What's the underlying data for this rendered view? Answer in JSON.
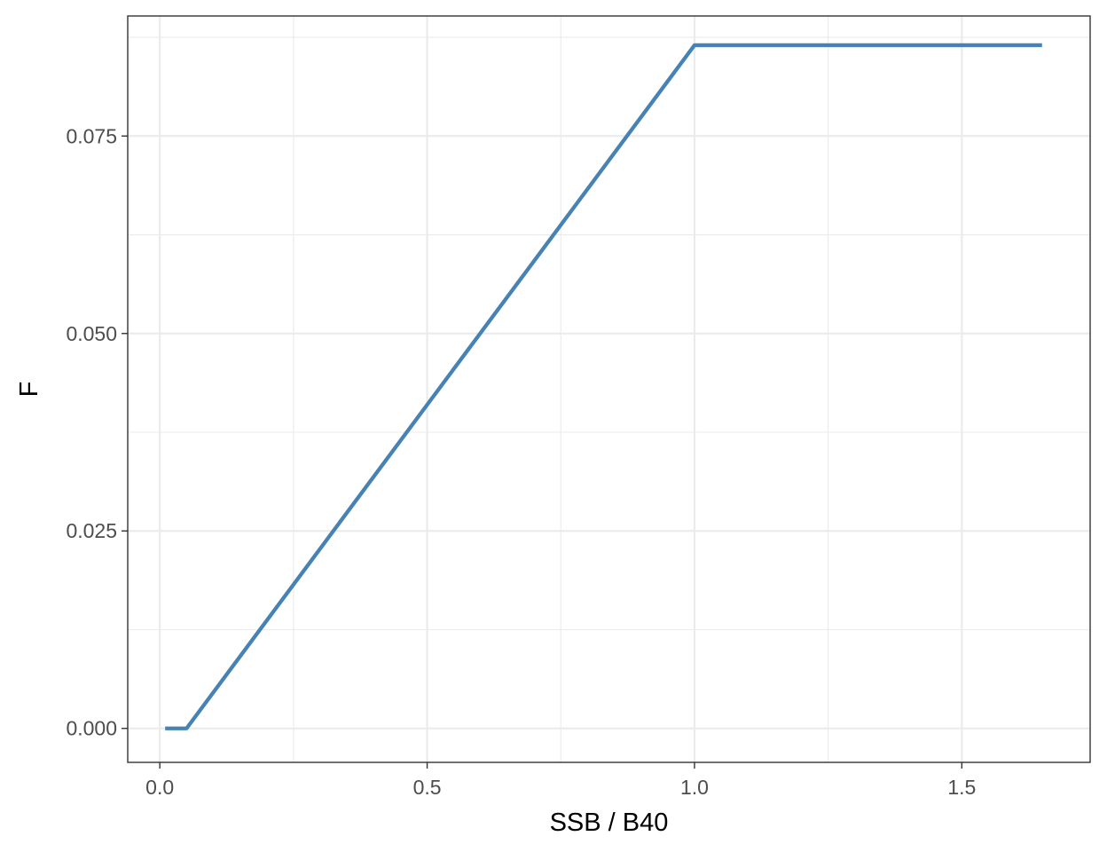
{
  "chart_data": {
    "type": "line",
    "title": "",
    "xlabel": "SSB / B40",
    "ylabel": "F",
    "xlim": [
      -0.06,
      1.74
    ],
    "ylim": [
      -0.0043,
      0.0902
    ],
    "x_ticks": [
      0.0,
      0.5,
      1.0,
      1.5
    ],
    "x_tick_labels": [
      "0.0",
      "0.5",
      "1.0",
      "1.5"
    ],
    "y_ticks": [
      0.0,
      0.025,
      0.05,
      0.075
    ],
    "y_tick_labels": [
      "0.000",
      "0.025",
      "0.050",
      "0.075"
    ],
    "grid": true,
    "legend": "none",
    "series": [
      {
        "color": "#4682b4",
        "x": [
          0.01,
          0.05,
          1.0,
          1.65
        ],
        "y": [
          0.0,
          0.0,
          0.0865,
          0.0865
        ]
      }
    ]
  }
}
